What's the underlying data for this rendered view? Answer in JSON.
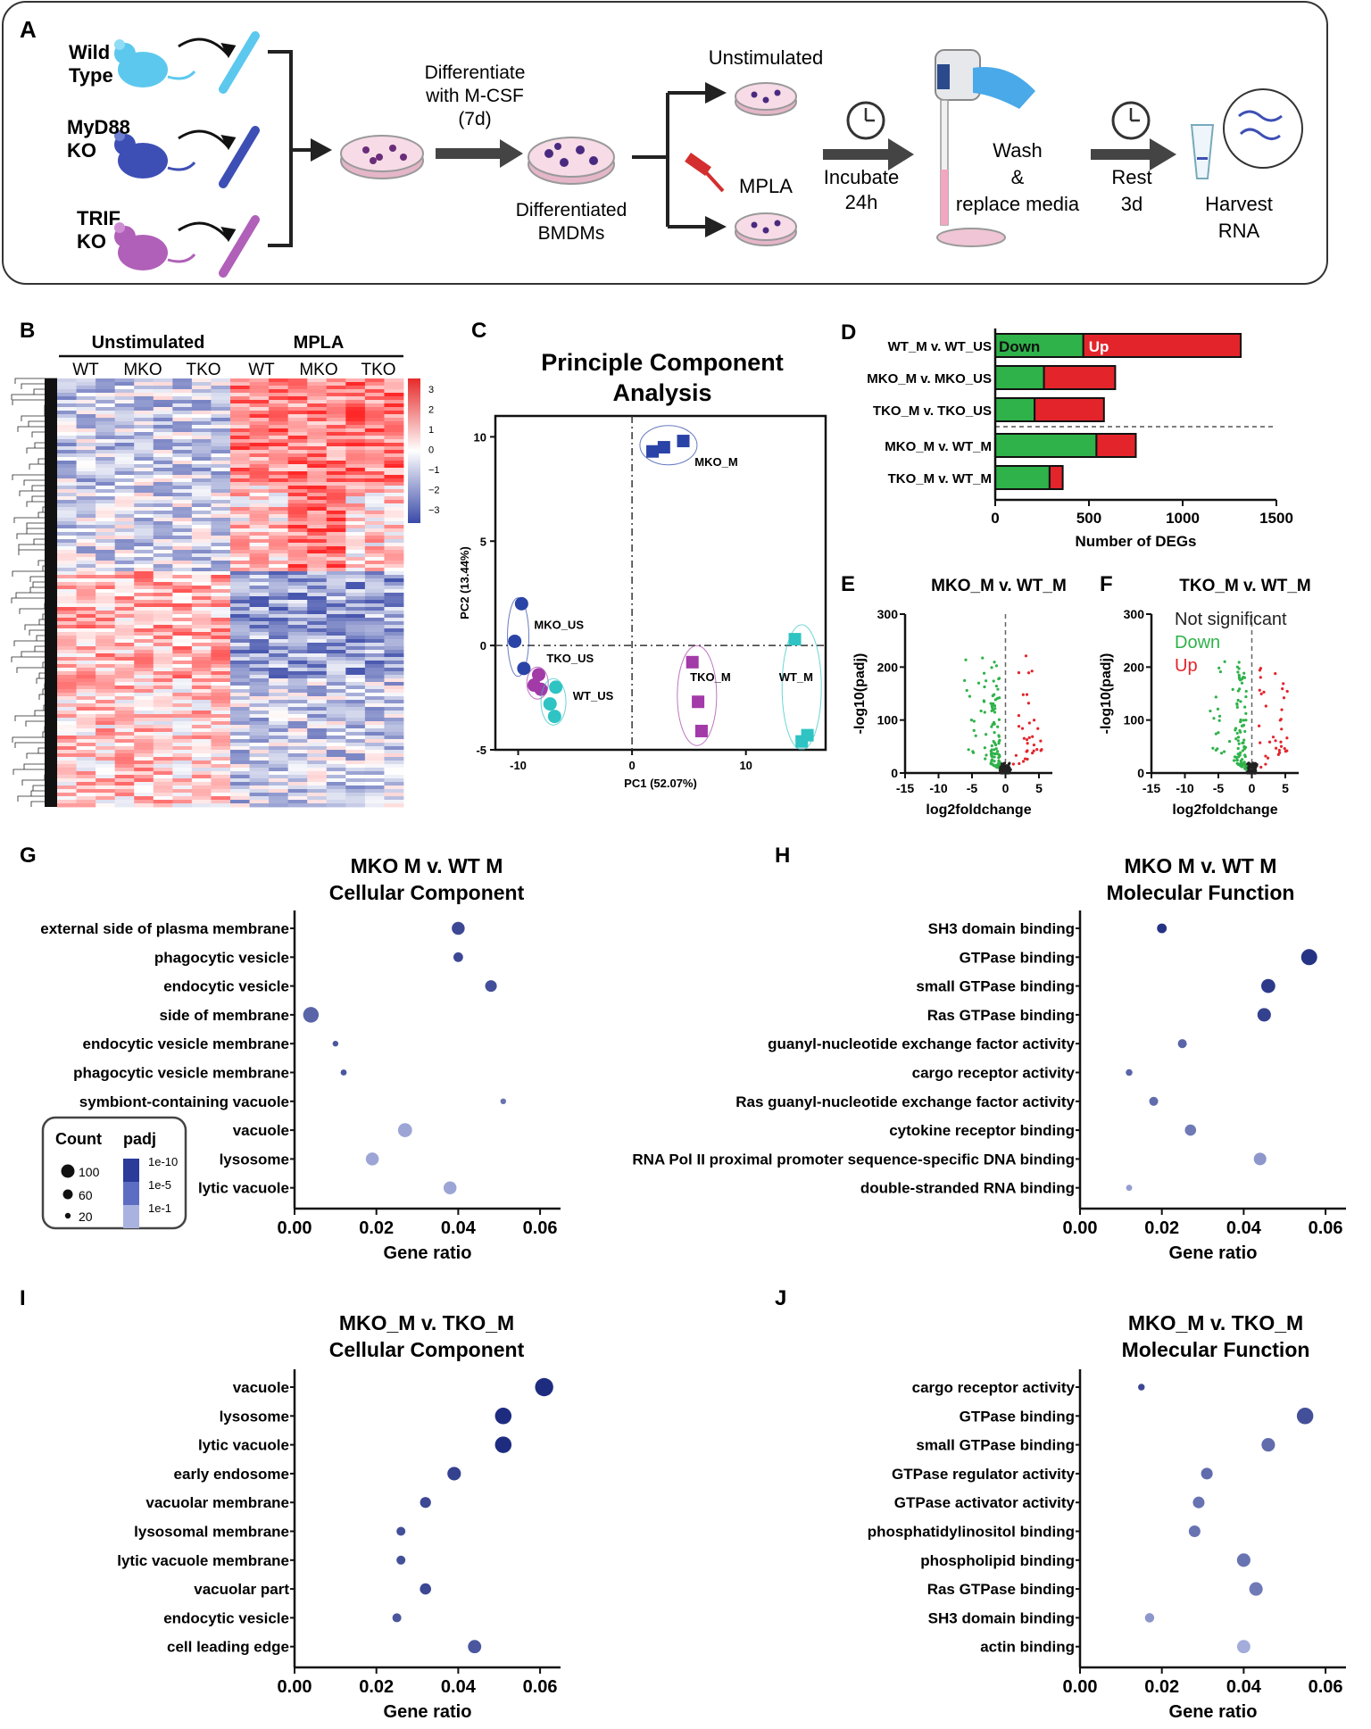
{
  "panelA": {
    "letter": "A",
    "mice": [
      "Wild\nType",
      "MyD88\nKO",
      "TRIF\nKO"
    ],
    "differentiate": [
      "Differentiate",
      "with M-CSF",
      "(7d)"
    ],
    "differentiated": [
      "Differentiated",
      "BMDMs"
    ],
    "unstimulated": "Unstimulated",
    "mpla": "MPLA",
    "incubate": [
      "Incubate",
      "24h"
    ],
    "wash": [
      "Wash",
      "&",
      "replace media"
    ],
    "rest": [
      "Rest",
      "3d"
    ],
    "harvest": [
      "Harvest",
      "RNA"
    ],
    "colors": {
      "wt": "#5cc8ee",
      "mko": "#3d4fb5",
      "trif": "#b060b8",
      "dish": "#f2c9dc"
    }
  },
  "panelB": {
    "letter": "B",
    "groups": [
      "Unstimulated",
      "MPLA"
    ],
    "subgroups": [
      "WT",
      "MKO",
      "TKO",
      "WT",
      "MKO",
      "TKO"
    ],
    "scale_ticks": [
      "3",
      "2",
      "1",
      "0",
      "−1",
      "−2",
      "−3"
    ],
    "colors": {
      "high": "#e62a2a",
      "low": "#3a4aa8"
    }
  },
  "panelC": {
    "letter": "C",
    "chart_data": {
      "type": "scatter",
      "title": "Principle Component\nAnalysis",
      "xlabel": "PC1 (52.07%)",
      "ylabel": "PC2 (13.44%)",
      "xlim": [
        -12,
        17
      ],
      "ylim": [
        -5,
        11
      ],
      "xticks": [
        -10,
        0,
        10
      ],
      "yticks": [
        -5,
        0,
        5,
        10
      ],
      "series": [
        {
          "name": "MKO_M",
          "shape": "square",
          "color": "#2a43a6",
          "points": [
            [
              1.8,
              9.3
            ],
            [
              2.8,
              9.5
            ],
            [
              4.5,
              9.8
            ]
          ]
        },
        {
          "name": "MKO_US",
          "shape": "circle",
          "color": "#2a43a6",
          "points": [
            [
              -9.7,
              2.0
            ],
            [
              -10.3,
              0.2
            ],
            [
              -9.5,
              -1.1
            ]
          ]
        },
        {
          "name": "TKO_US",
          "shape": "circle",
          "color": "#a23aa8",
          "points": [
            [
              -8.2,
              -1.4
            ],
            [
              -8.6,
              -1.9
            ],
            [
              -8.0,
              -2.1
            ]
          ]
        },
        {
          "name": "WT_US",
          "shape": "circle",
          "color": "#2fc3c3",
          "points": [
            [
              -6.7,
              -2.0
            ],
            [
              -7.2,
              -2.8
            ],
            [
              -6.8,
              -3.4
            ]
          ]
        },
        {
          "name": "TKO_M",
          "shape": "square",
          "color": "#a23aa8",
          "points": [
            [
              5.3,
              -0.8
            ],
            [
              5.8,
              -2.7
            ],
            [
              6.1,
              -4.1
            ]
          ]
        },
        {
          "name": "WT_M",
          "shape": "square",
          "color": "#2fc3c3",
          "points": [
            [
              14.3,
              0.3
            ],
            [
              15.4,
              -4.3
            ],
            [
              14.9,
              -4.6
            ]
          ]
        }
      ]
    }
  },
  "panelD": {
    "letter": "D",
    "chart_data": {
      "type": "bar",
      "orientation": "horizontal-stacked",
      "categories": [
        "WT_M v. WT_US",
        "MKO_M v. MKO_US",
        "TKO_M v. TKO_US",
        "MKO_M v. WT_M",
        "TKO_M v. WT_M"
      ],
      "series": [
        {
          "name": "Down",
          "color": "#2fb24a",
          "values": [
            470,
            260,
            210,
            540,
            290
          ]
        },
        {
          "name": "Up",
          "color": "#e3242b",
          "values": [
            840,
            380,
            370,
            210,
            70
          ]
        }
      ],
      "xlabel": "Number of DEGs",
      "xlim": [
        0,
        1500
      ],
      "xticks": [
        0,
        500,
        1000,
        1500
      ],
      "legend_labels": [
        "Down",
        "Up"
      ]
    }
  },
  "panelE": {
    "letter": "E",
    "chart_data": {
      "type": "scatter",
      "title": "MKO_M v. WT_M",
      "xlabel": "log2foldchange",
      "ylabel": "-log10(padj)",
      "xlim": [
        -15,
        7
      ],
      "ylim": [
        0,
        300
      ],
      "xticks": [
        -15,
        -10,
        -5,
        0,
        5
      ],
      "yticks": [
        0,
        100,
        200,
        300
      ]
    }
  },
  "panelF": {
    "letter": "F",
    "chart_data": {
      "type": "scatter",
      "title": "TKO_M v. WT_M",
      "xlabel": "log2foldchange",
      "ylabel": "-log10(padj)",
      "xlim": [
        -15,
        7
      ],
      "ylim": [
        0,
        300
      ],
      "xticks": [
        -15,
        -10,
        -5,
        0,
        5
      ],
      "yticks": [
        0,
        100,
        200,
        300
      ],
      "legend": [
        {
          "label": "Not significant",
          "color": "#222222"
        },
        {
          "label": "Down",
          "color": "#2fb24a"
        },
        {
          "label": "Up",
          "color": "#e3242b"
        }
      ]
    }
  },
  "dotLegend": {
    "count_title": "Count",
    "padj_title": "padj",
    "counts": [
      "100",
      "60",
      "20"
    ],
    "padj": [
      "1e-10",
      "1e-5",
      "1e-1"
    ]
  },
  "dotPlots": [
    {
      "letter": "G",
      "chart_data": {
        "type": "scatter",
        "title": "MKO M v. WT M\nCellular Component",
        "xlabel": "Gene ratio",
        "xlim": [
          0,
          0.065
        ],
        "xticks": [
          "0.00",
          "0.02",
          "0.04",
          "0.06"
        ],
        "terms": [
          "external side of plasma membrane",
          "phagocytic vesicle",
          "endocytic vesicle",
          "side of membrane",
          "endocytic vesicle membrane",
          "phagocytic vesicle membrane",
          "symbiont-containing vacuole",
          "vacuole",
          "lysosome",
          "lytic vacuole"
        ],
        "gene_ratio": [
          0.04,
          0.04,
          0.048,
          0.004,
          0.01,
          0.012,
          0.051,
          0.027,
          0.019,
          0.038
        ],
        "count": [
          45,
          22,
          35,
          70,
          5,
          6,
          5,
          55,
          45,
          45
        ],
        "padj_level": [
          0.2,
          0.2,
          0.25,
          0.4,
          0.3,
          0.3,
          0.5,
          0.85,
          0.85,
          0.85
        ]
      }
    },
    {
      "letter": "H",
      "chart_data": {
        "type": "scatter",
        "title": "MKO M v. WT M\nMolecular Function",
        "xlabel": "Gene ratio",
        "xlim": [
          0,
          0.065
        ],
        "xticks": [
          "0.00",
          "0.02",
          "0.04",
          "0.06"
        ],
        "terms": [
          "SH3 domain binding",
          "GTPase binding",
          "small GTPase binding",
          "Ras GTPase binding",
          "guanyl-nucleotide exchange factor activity",
          "cargo receptor activity",
          "Ras guanyl-nucleotide exchange factor activity",
          "cytokine receptor binding",
          "RNA Pol II proximal promoter sequence-specific DNA binding",
          "double-stranded RNA binding"
        ],
        "gene_ratio": [
          0.02,
          0.056,
          0.046,
          0.045,
          0.025,
          0.012,
          0.018,
          0.027,
          0.044,
          0.012
        ],
        "count": [
          22,
          75,
          55,
          50,
          18,
          8,
          18,
          32,
          42,
          6
        ],
        "padj_level": [
          0.05,
          0.05,
          0.1,
          0.15,
          0.4,
          0.4,
          0.45,
          0.55,
          0.75,
          0.8
        ]
      }
    },
    {
      "letter": "I",
      "chart_data": {
        "type": "scatter",
        "title": "MKO_M v. TKO_M\nCellular Component",
        "xlabel": "Gene ratio",
        "xlim": [
          0,
          0.065
        ],
        "xticks": [
          "0.00",
          "0.02",
          "0.04",
          "0.06"
        ],
        "terms": [
          "vacuole",
          "lysosome",
          "lytic vacuole",
          "early endosome",
          "vacuolar membrane",
          "lysosomal membrane",
          "lytic vacuole membrane",
          "vacuolar part",
          "endocytic vesicle",
          "cell leading edge"
        ],
        "gene_ratio": [
          0.061,
          0.051,
          0.051,
          0.039,
          0.032,
          0.026,
          0.026,
          0.032,
          0.025,
          0.044
        ],
        "count": [
          100,
          80,
          80,
          50,
          30,
          18,
          18,
          32,
          18,
          48
        ],
        "padj_level": [
          0.0,
          0.0,
          0.0,
          0.15,
          0.2,
          0.25,
          0.25,
          0.2,
          0.3,
          0.3
        ]
      }
    },
    {
      "letter": "J",
      "chart_data": {
        "type": "scatter",
        "title": "MKO_M v. TKO_M\nMolecular Function",
        "xlabel": "Gene ratio",
        "xlim": [
          0,
          0.065
        ],
        "xticks": [
          "0.00",
          "0.02",
          "0.04",
          "0.06"
        ],
        "terms": [
          "cargo receptor activity",
          "GTPase binding",
          "small GTPase binding",
          "GTPase regulator activity",
          "GTPase activator activity",
          "phosphatidylinositol binding",
          "phospholipid binding",
          "Ras GTPase binding",
          "SH3 domain binding",
          "actin binding"
        ],
        "gene_ratio": [
          0.015,
          0.055,
          0.046,
          0.031,
          0.029,
          0.028,
          0.04,
          0.043,
          0.017,
          0.04
        ],
        "count": [
          8,
          80,
          50,
          35,
          35,
          35,
          50,
          50,
          20,
          48
        ],
        "padj_level": [
          0.2,
          0.25,
          0.45,
          0.45,
          0.5,
          0.5,
          0.5,
          0.55,
          0.75,
          0.9
        ]
      }
    }
  ]
}
